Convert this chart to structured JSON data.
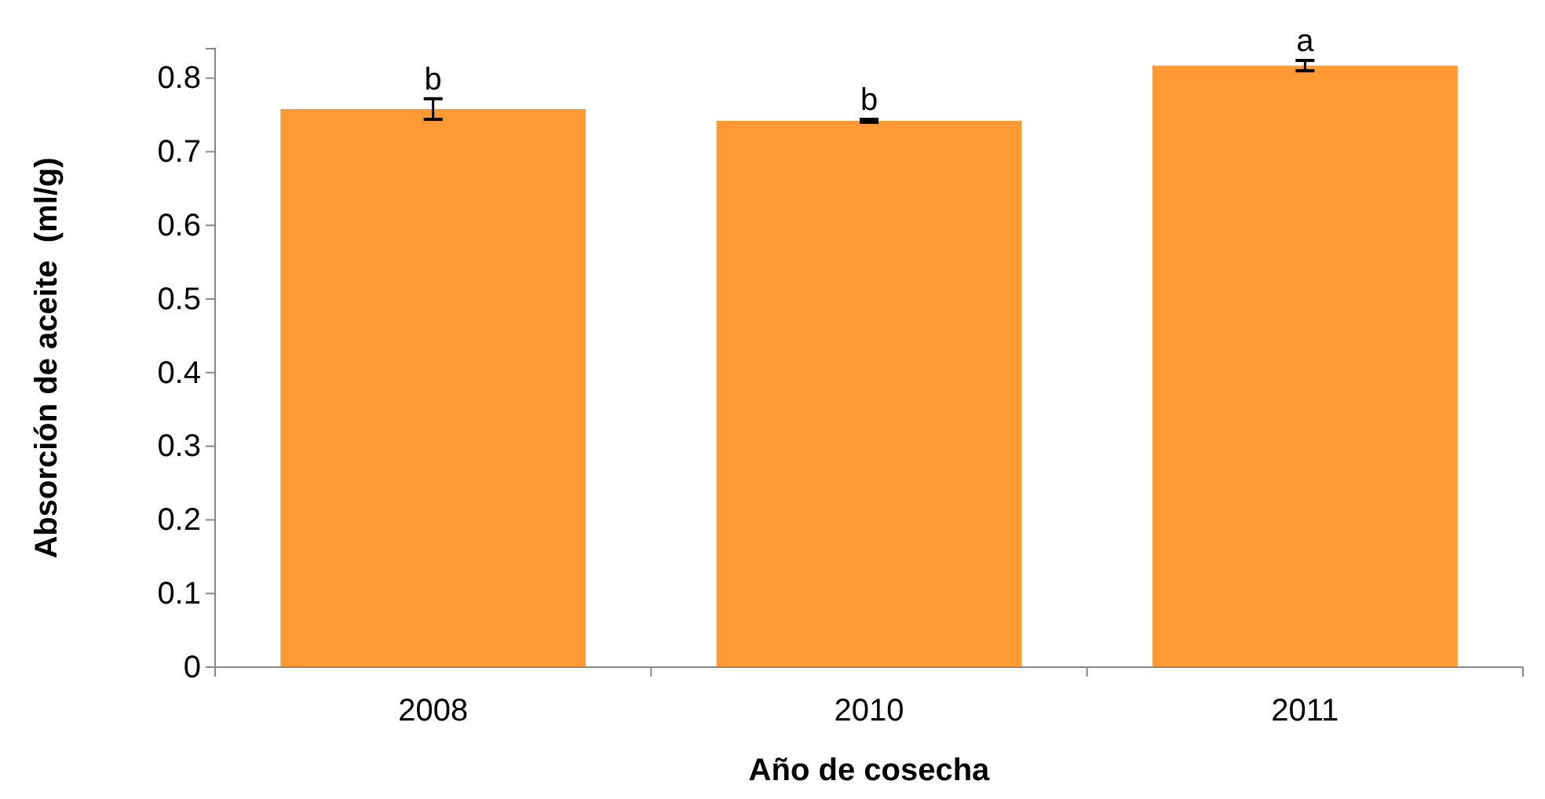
{
  "chart_data": {
    "type": "bar",
    "xlabel": "Año de cosecha",
    "ylabel": "Absorción de aceite  (ml/g)",
    "categories": [
      "2008",
      "2010",
      "2011"
    ],
    "values": [
      0.758,
      0.742,
      0.817
    ],
    "errors": [
      0.014,
      0.002,
      0.007
    ],
    "color": "#ff9933",
    "ylim": [
      0,
      0.84
    ],
    "yticks": [
      0,
      0.1,
      0.2,
      0.3,
      0.4,
      0.5,
      0.6,
      0.7,
      0.8
    ],
    "grid": false,
    "annotations": [
      {
        "text": "b",
        "x": "2008",
        "y": 0.772
      },
      {
        "text": "b",
        "x": "2010",
        "y": 0.744
      },
      {
        "text": "a",
        "x": "2011",
        "y": 0.824
      }
    ]
  }
}
